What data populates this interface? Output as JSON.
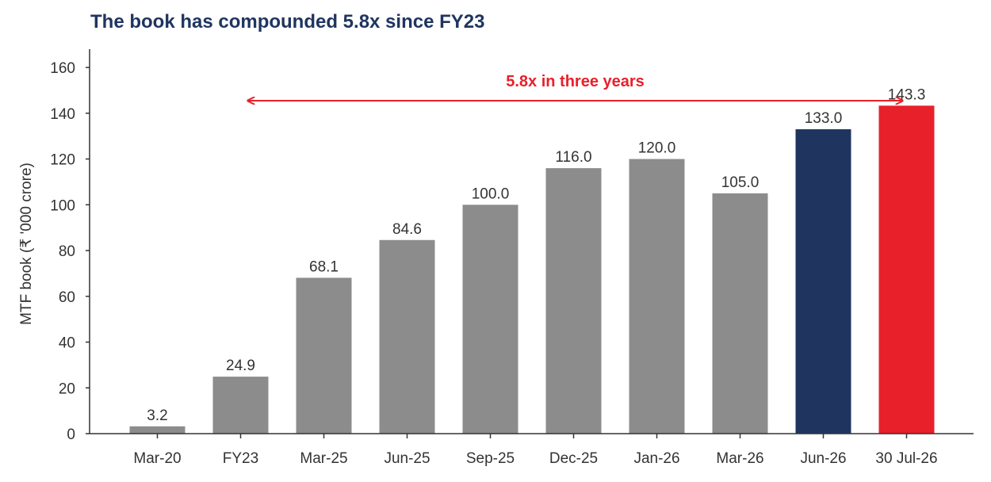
{
  "chart_data": {
    "type": "bar",
    "title": "The book has compounded 5.8x since FY23",
    "ylabel": "MTF book (₹ '000 crore)",
    "xlabel": "",
    "categories": [
      "Mar-20",
      "FY23",
      "Mar-25",
      "Jun-25",
      "Sep-25",
      "Dec-25",
      "Jan-26",
      "Mar-26",
      "Jun-26",
      "30 Jul-26"
    ],
    "values": [
      3.2,
      24.9,
      68.1,
      84.6,
      100.0,
      116.0,
      120.0,
      105.0,
      133.0,
      143.3
    ],
    "data_labels": [
      "3.2",
      "24.9",
      "68.1",
      "84.6",
      "100.0",
      "116.0",
      "120.0",
      "105.0",
      "133.0",
      "143.3"
    ],
    "bar_colors": [
      "#8c8c8c",
      "#8c8c8c",
      "#8c8c8c",
      "#8c8c8c",
      "#8c8c8c",
      "#8c8c8c",
      "#8c8c8c",
      "#8c8c8c",
      "#1f3560",
      "#e8202a"
    ],
    "ylim": [
      0,
      168
    ],
    "yticks": [
      0,
      20,
      40,
      60,
      80,
      100,
      120,
      140,
      160
    ],
    "grid": false,
    "annotation": {
      "text": "5.8x in three years",
      "from_category": "FY23",
      "to_category": "30 Jul-26",
      "color": "#e8202a"
    }
  }
}
